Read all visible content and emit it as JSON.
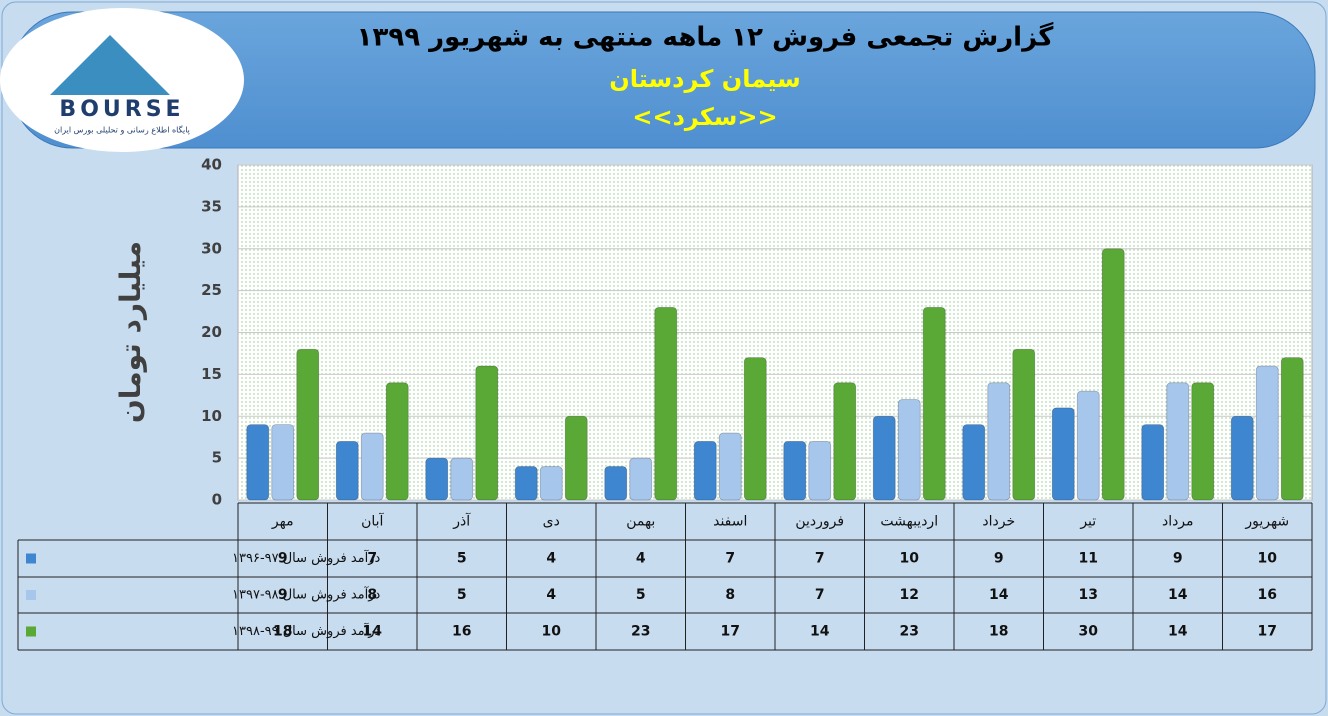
{
  "logo": {
    "brand": "BOURSE",
    "tagline": "پایگاه اطلاع رسانی و تحلیلی بورس ایران"
  },
  "chart_data": {
    "type": "bar",
    "title": "گزارش تجمعی فروش ۱۲ ماهه منتهی به شهریور ۱۳۹۹",
    "subtitle": "سیمان کردستان",
    "subtitle2": "<<سکرد>>",
    "y_label": "میلیارد تومان",
    "categories": [
      "مهر",
      "آبان",
      "آذر",
      "دی",
      "بهمن",
      "اسفند",
      "فروردین",
      "اردیبهشت",
      "خرداد",
      "تیر",
      "مرداد",
      "شهریور"
    ],
    "series": [
      {
        "name": "درآمد فروش سال ۹۷-۱۳۹۶",
        "color": "#3f86d0",
        "values": [
          9,
          7,
          5,
          4,
          4,
          7,
          7,
          10,
          9,
          11,
          9,
          10
        ]
      },
      {
        "name": "درآمد فروش سال ۹۸-۱۳۹۷",
        "color": "#a6c6ec",
        "values": [
          9,
          8,
          5,
          4,
          5,
          8,
          7,
          12,
          14,
          13,
          14,
          16
        ]
      },
      {
        "name": "درآمد فروش سال ۹۹-۱۳۹۸",
        "color": "#5aa835",
        "values": [
          18,
          14,
          16,
          10,
          23,
          17,
          14,
          23,
          18,
          30,
          14,
          17
        ]
      }
    ],
    "ylim": [
      0,
      40
    ],
    "yticks": [
      0,
      5,
      10,
      15,
      20,
      25,
      30,
      35,
      40
    ]
  }
}
